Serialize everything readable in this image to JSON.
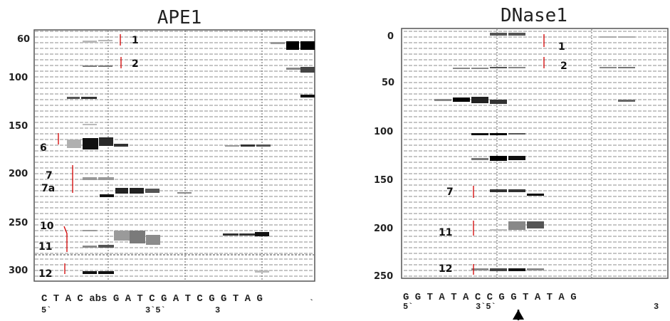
{
  "panels": [
    {
      "id": "ape1",
      "title": "APE1",
      "yticks": [
        "60",
        "100",
        "150",
        "200",
        "250",
        "300"
      ],
      "band_labels": [
        "1",
        "2",
        "6",
        "7",
        "7a",
        "10",
        "11",
        "12"
      ],
      "sequence": "C T A C abs G A T C G A T C G G T A G",
      "sequence_marks": [
        "5`",
        "3`5`",
        "3",
        "`"
      ]
    },
    {
      "id": "dnase1",
      "title": "DNase1",
      "yticks": [
        "0",
        "50",
        "100",
        "150",
        "200",
        "250"
      ],
      "band_labels": [
        "1",
        "2",
        "7",
        "11",
        "12"
      ],
      "sequence": "G G T A T A C C G G T A T A G",
      "sequence_marks": [
        "5`",
        "3`5`",
        "3"
      ]
    }
  ],
  "colors": {
    "band_dark": "#000000",
    "band_light": "#9a9a9a",
    "marker_red": "#d40000",
    "grid_dash": "#8a8a8a"
  },
  "icons": [
    "up-arrow-icon",
    "up-arrow-icon"
  ]
}
